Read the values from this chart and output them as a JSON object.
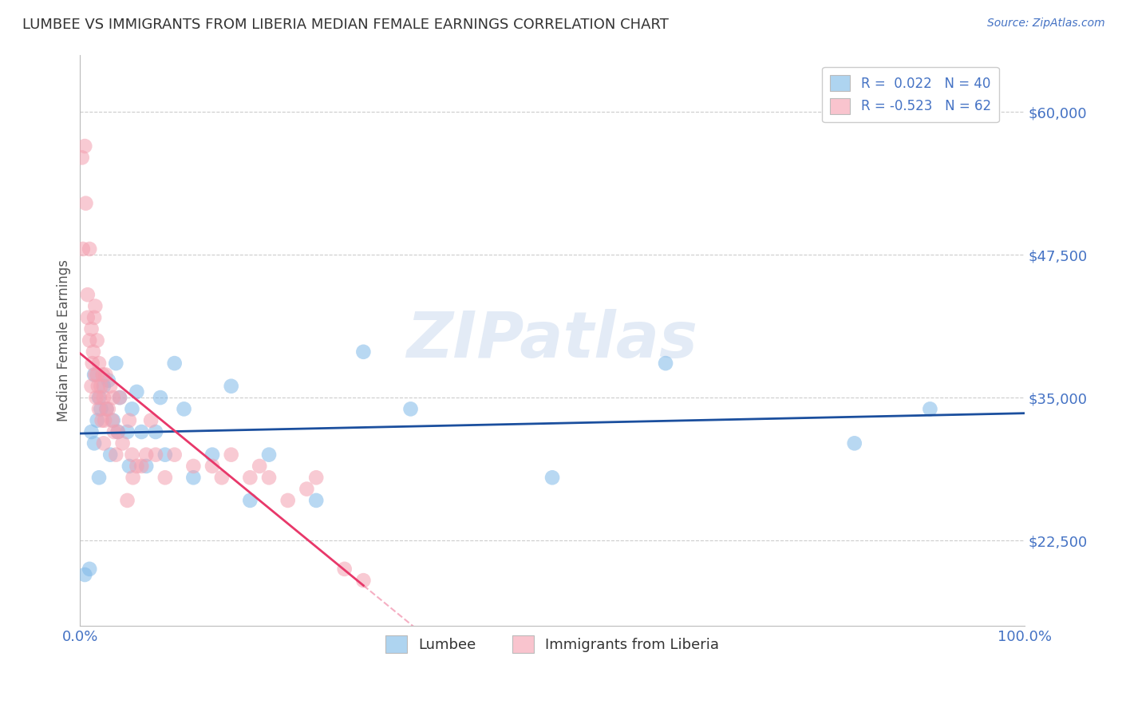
{
  "title": "LUMBEE VS IMMIGRANTS FROM LIBERIA MEDIAN FEMALE EARNINGS CORRELATION CHART",
  "source_text": "Source: ZipAtlas.com",
  "ylabel": "Median Female Earnings",
  "xlim": [
    0.0,
    1.0
  ],
  "ylim": [
    15000,
    65000
  ],
  "ytick_values": [
    22500,
    35000,
    47500,
    60000
  ],
  "yticklabels": [
    "$22,500",
    "$35,000",
    "$47,500",
    "$60,000"
  ],
  "legend_labels": [
    "Lumbee",
    "Immigrants from Liberia"
  ],
  "lumbee_R": 0.022,
  "lumbee_N": 40,
  "liberia_R": -0.523,
  "liberia_N": 62,
  "color_lumbee": "#7EB8E8",
  "color_liberia": "#F4A0B0",
  "color_lumbee_line": "#1B4F9E",
  "color_liberia_line": "#E8386A",
  "color_lumbee_legend": "#AED4F0",
  "color_liberia_legend": "#F9C4CE",
  "watermark": "ZIPatlas",
  "background_color": "#FFFFFF",
  "grid_color": "#CCCCCC",
  "title_color": "#333333",
  "axis_label_color": "#555555",
  "tick_label_color": "#4472C4",
  "lumbee_x": [
    0.005,
    0.01,
    0.012,
    0.015,
    0.015,
    0.018,
    0.02,
    0.02,
    0.022,
    0.025,
    0.028,
    0.03,
    0.032,
    0.035,
    0.038,
    0.04,
    0.042,
    0.05,
    0.052,
    0.055,
    0.06,
    0.065,
    0.07,
    0.08,
    0.085,
    0.09,
    0.1,
    0.11,
    0.12,
    0.14,
    0.16,
    0.18,
    0.2,
    0.25,
    0.3,
    0.35,
    0.5,
    0.62,
    0.82,
    0.9
  ],
  "lumbee_y": [
    19500,
    20000,
    32000,
    37000,
    31000,
    33000,
    35000,
    28000,
    34000,
    36000,
    34000,
    36500,
    30000,
    33000,
    38000,
    32000,
    35000,
    32000,
    29000,
    34000,
    35500,
    32000,
    29000,
    32000,
    35000,
    30000,
    38000,
    34000,
    28000,
    30000,
    36000,
    26000,
    30000,
    26000,
    39000,
    34000,
    28000,
    38000,
    31000,
    34000
  ],
  "liberia_x": [
    0.002,
    0.003,
    0.005,
    0.006,
    0.008,
    0.008,
    0.01,
    0.01,
    0.012,
    0.012,
    0.013,
    0.014,
    0.015,
    0.016,
    0.016,
    0.017,
    0.018,
    0.018,
    0.019,
    0.02,
    0.02,
    0.021,
    0.022,
    0.023,
    0.024,
    0.025,
    0.025,
    0.026,
    0.027,
    0.028,
    0.03,
    0.032,
    0.034,
    0.035,
    0.036,
    0.038,
    0.04,
    0.042,
    0.045,
    0.05,
    0.052,
    0.055,
    0.056,
    0.06,
    0.065,
    0.07,
    0.075,
    0.08,
    0.09,
    0.1,
    0.12,
    0.14,
    0.15,
    0.16,
    0.18,
    0.19,
    0.2,
    0.22,
    0.24,
    0.25,
    0.28,
    0.3
  ],
  "liberia_y": [
    56000,
    48000,
    57000,
    52000,
    42000,
    44000,
    48000,
    40000,
    36000,
    41000,
    38000,
    39000,
    42000,
    43000,
    37000,
    35000,
    37000,
    40000,
    36000,
    38000,
    34000,
    35000,
    36000,
    33000,
    37000,
    35000,
    31000,
    33000,
    37000,
    34000,
    34000,
    36000,
    33000,
    35000,
    32000,
    30000,
    32000,
    35000,
    31000,
    26000,
    33000,
    30000,
    28000,
    29000,
    29000,
    30000,
    33000,
    30000,
    28000,
    30000,
    29000,
    29000,
    28000,
    30000,
    28000,
    29000,
    28000,
    26000,
    27000,
    28000,
    20000,
    19000
  ]
}
